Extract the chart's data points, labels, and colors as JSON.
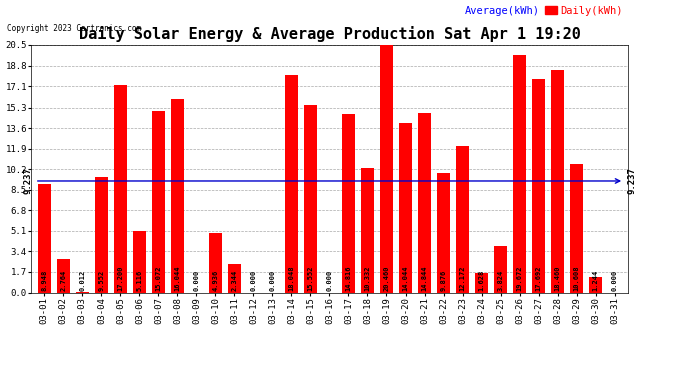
{
  "title": "Daily Solar Energy & Average Production Sat Apr 1 19:20",
  "copyright": "Copyright 2023 Cartronics.com",
  "legend_avg": "Average(kWh)",
  "legend_daily": "Daily(kWh)",
  "average_value": 9.237,
  "categories": [
    "03-01",
    "03-02",
    "03-03",
    "03-04",
    "03-05",
    "03-06",
    "03-07",
    "03-08",
    "03-09",
    "03-10",
    "03-11",
    "03-12",
    "03-13",
    "03-14",
    "03-15",
    "03-16",
    "03-17",
    "03-18",
    "03-19",
    "03-20",
    "03-21",
    "03-22",
    "03-23",
    "03-24",
    "03-25",
    "03-26",
    "03-27",
    "03-28",
    "03-29",
    "03-30",
    "03-31"
  ],
  "values": [
    8.948,
    2.764,
    0.012,
    9.552,
    17.2,
    5.116,
    15.072,
    16.044,
    0.0,
    4.936,
    2.344,
    0.0,
    0.0,
    18.048,
    15.552,
    0.0,
    14.816,
    10.332,
    20.46,
    14.044,
    14.844,
    9.876,
    12.172,
    1.628,
    3.824,
    19.672,
    17.692,
    18.46,
    10.608,
    1.244,
    0.0
  ],
  "bar_color": "#ff0000",
  "avg_line_color": "#0000cc",
  "background_color": "#ffffff",
  "grid_color": "#aaaaaa",
  "ylim": [
    0.0,
    20.5
  ],
  "yticks": [
    0.0,
    1.7,
    3.4,
    5.1,
    6.8,
    8.5,
    10.2,
    11.9,
    13.6,
    15.3,
    17.1,
    18.8,
    20.5
  ],
  "title_fontsize": 11,
  "label_fontsize": 5.0,
  "tick_fontsize": 6.5,
  "avg_label_fontsize": 6.5,
  "legend_fontsize": 7.5
}
